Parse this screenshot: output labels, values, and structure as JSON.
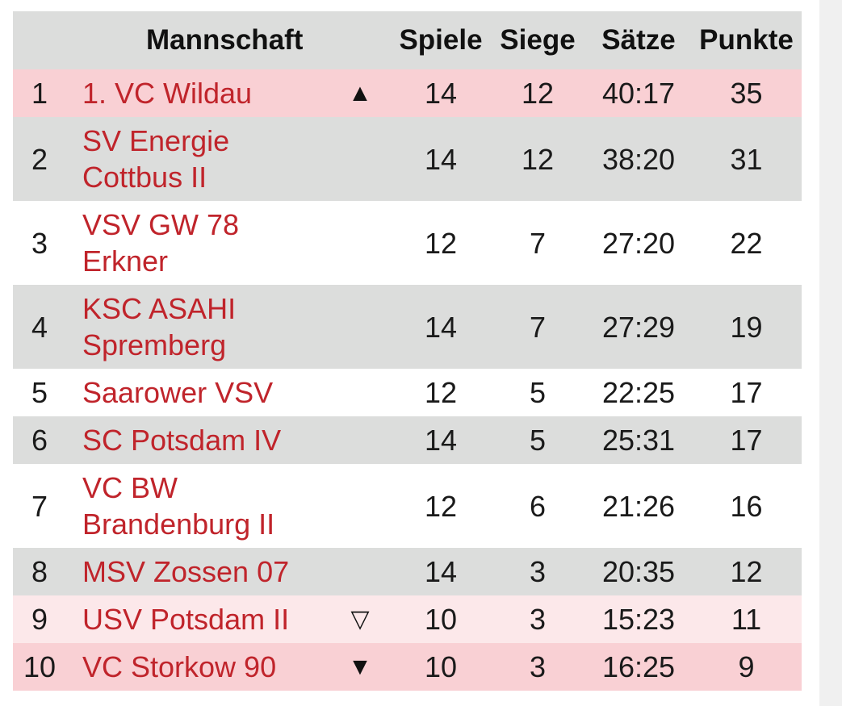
{
  "header": {
    "rank": "",
    "team": "Mannschaft",
    "trend": "",
    "games": "Spiele",
    "wins": "Siege",
    "sets": "Sätze",
    "points": "Punkte"
  },
  "rows": [
    {
      "rank": "1",
      "team": "1. VC Wildau",
      "trend": "▲",
      "games": "14",
      "wins": "12",
      "sets": "40:17",
      "points": "35"
    },
    {
      "rank": "2",
      "team": "SV Energie Cottbus II",
      "trend": "",
      "games": "14",
      "wins": "12",
      "sets": "38:20",
      "points": "31"
    },
    {
      "rank": "3",
      "team": "VSV GW 78 Erkner",
      "trend": "",
      "games": "12",
      "wins": "7",
      "sets": "27:20",
      "points": "22"
    },
    {
      "rank": "4",
      "team": "KSC ASAHI Spremberg",
      "trend": "",
      "games": "14",
      "wins": "7",
      "sets": "27:29",
      "points": "19"
    },
    {
      "rank": "5",
      "team": "Saarower VSV",
      "trend": "",
      "games": "12",
      "wins": "5",
      "sets": "22:25",
      "points": "17"
    },
    {
      "rank": "6",
      "team": "SC Potsdam IV",
      "trend": "",
      "games": "14",
      "wins": "5",
      "sets": "25:31",
      "points": "17"
    },
    {
      "rank": "7",
      "team": "VC BW Brandenburg II",
      "trend": "",
      "games": "12",
      "wins": "6",
      "sets": "21:26",
      "points": "16"
    },
    {
      "rank": "8",
      "team": "MSV Zossen 07",
      "trend": "",
      "games": "14",
      "wins": "3",
      "sets": "20:35",
      "points": "12"
    },
    {
      "rank": "9",
      "team": "USV Potsdam II",
      "trend": "▽",
      "games": "10",
      "wins": "3",
      "sets": "15:23",
      "points": "11"
    },
    {
      "rank": "10",
      "team": "VC Storkow 90",
      "trend": "▼",
      "games": "10",
      "wins": "3",
      "sets": "16:25",
      "points": "9"
    }
  ],
  "colors": {
    "team_link": "#c0242b",
    "row_grey": "#dcdddc",
    "row_promotion": "#f9d0d4",
    "row_relegation_light": "#fce8ea"
  }
}
